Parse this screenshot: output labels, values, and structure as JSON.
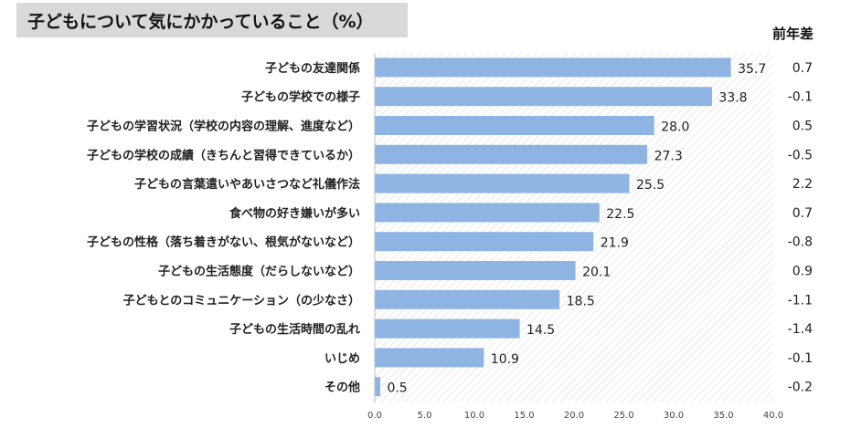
{
  "title": "子どもについて気にかかっていること（%）",
  "diff_header": "前年差",
  "chart_data": {
    "type": "bar",
    "orientation": "horizontal",
    "title": "子どもについて気にかかっていること（%）",
    "categories": [
      "子どもの友達関係",
      "子どもの学校での様子",
      "子どもの学習状況（学校の内容の理解、進度など）",
      "子どもの学校の成績（きちんと習得できているか）",
      "子どもの言葉遣いやあいさつなど礼儀作法",
      "食べ物の好き嫌いが多い",
      "子どもの性格（落ち着きがない、根気がないなど）",
      "子どもの生活態度（だらしないなど）",
      "子どもとのコミュニケーション（の少なさ）",
      "子どもの生活時間の乱れ",
      "いじめ",
      "その他"
    ],
    "values": [
      35.7,
      33.8,
      28.0,
      27.3,
      25.5,
      22.5,
      21.9,
      20.1,
      18.5,
      14.5,
      10.9,
      0.5
    ],
    "value_labels": [
      "35.7",
      "33.8",
      "28.0",
      "27.3",
      "25.5",
      "22.5",
      "21.9",
      "20.1",
      "18.5",
      "14.5",
      "10.9",
      "0.5"
    ],
    "diffs": [
      "0.7",
      "-0.1",
      "0.5",
      "-0.5",
      "2.2",
      "0.7",
      "-0.8",
      "0.9",
      "-1.1",
      "-1.4",
      "-0.1",
      "-0.2"
    ],
    "xlim": [
      0,
      40
    ],
    "xticks": [
      "0.0",
      "5.0",
      "10.0",
      "15.0",
      "20.0",
      "25.0",
      "30.0",
      "35.0",
      "40.0"
    ],
    "bar_color": "#8eb4e3",
    "background": "hatched"
  }
}
